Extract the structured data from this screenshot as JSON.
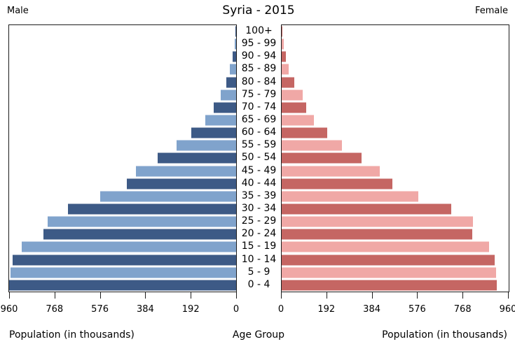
{
  "title": "Syria - 2015",
  "headers": {
    "male": "Male",
    "female": "Female"
  },
  "bottom_labels": {
    "left": "Population (in thousands)",
    "center": "Age Group",
    "right": "Population (in thousands)"
  },
  "colors": {
    "male_dark": "#3D5A86",
    "male_light": "#80A3CC",
    "female_dark": "#C56663",
    "female_light": "#F0A8A6",
    "axis": "#1c1c1c",
    "background": "#ffffff"
  },
  "chart_data": {
    "type": "bar",
    "subtype": "population-pyramid",
    "title": "Syria - 2015",
    "xlabel_left": "Population (in thousands)",
    "xlabel_right": "Population (in thousands)",
    "center_axis_label": "Age Group",
    "unit": "thousands",
    "xlim": [
      0,
      960
    ],
    "left_axis_ticks": [
      960,
      768,
      576,
      384,
      192,
      0
    ],
    "right_axis_ticks": [
      0,
      192,
      384,
      576,
      768,
      960
    ],
    "grid": false,
    "age_groups_top_to_bottom": [
      "100+",
      "95 - 99",
      "90 - 94",
      "85 - 89",
      "80 - 84",
      "75 - 79",
      "70 - 74",
      "65 - 69",
      "60 - 64",
      "55 - 59",
      "50 - 54",
      "45 - 49",
      "40 - 44",
      "35 - 39",
      "30 - 34",
      "25 - 29",
      "20 - 24",
      "15 - 19",
      "10 - 14",
      "5 - 9",
      "0 - 4"
    ],
    "series": [
      {
        "name": "Male",
        "side": "left",
        "values_top_to_bottom": [
          3,
          7,
          15,
          27,
          41,
          64,
          94,
          130,
          190,
          251,
          332,
          425,
          463,
          576,
          710,
          798,
          814,
          908,
          945,
          954,
          959
        ]
      },
      {
        "name": "Female",
        "side": "right",
        "values_top_to_bottom": [
          4,
          8,
          18,
          30,
          52,
          88,
          104,
          136,
          194,
          254,
          339,
          416,
          469,
          578,
          718,
          808,
          806,
          876,
          900,
          906,
          909
        ]
      }
    ]
  }
}
